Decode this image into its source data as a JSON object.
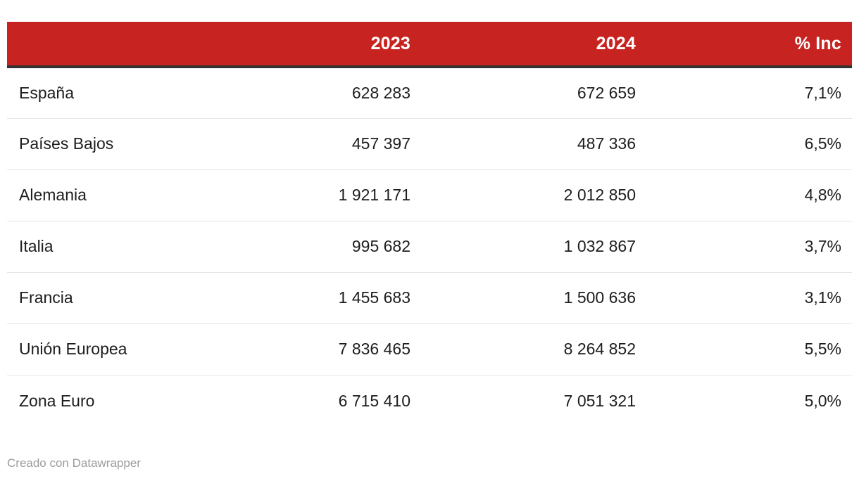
{
  "colors": {
    "header_bg": "#c72320",
    "header_text": "#ffffff",
    "header_rule": "#333333",
    "row_divider": "#e6e6e6",
    "body_text": "#1d1d1d",
    "credit_text": "#9c9c9c"
  },
  "table": {
    "headers": {
      "country": "",
      "y2023": "2023",
      "y2024": "2024",
      "inc": "% Inc"
    },
    "rows": [
      {
        "country": "España",
        "y2023": "628 283",
        "y2024": "672 659",
        "inc": "7,1%"
      },
      {
        "country": "Países Bajos",
        "y2023": "457 397",
        "y2024": "487 336",
        "inc": "6,5%"
      },
      {
        "country": "Alemania",
        "y2023": "1 921 171",
        "y2024": "2 012 850",
        "inc": "4,8%"
      },
      {
        "country": "Italia",
        "y2023": "995 682",
        "y2024": "1 032 867",
        "inc": "3,7%"
      },
      {
        "country": "Francia",
        "y2023": "1 455 683",
        "y2024": "1 500 636",
        "inc": "3,1%"
      },
      {
        "country": "Unión Europea",
        "y2023": "7 836 465",
        "y2024": "8 264 852",
        "inc": "5,5%"
      },
      {
        "country": "Zona Euro",
        "y2023": "6 715 410",
        "y2024": "7 051 321",
        "inc": "5,0%"
      }
    ]
  },
  "footer": {
    "credit": "Creado con Datawrapper"
  },
  "chart_data": {
    "type": "table",
    "columns": [
      "",
      "2023",
      "2024",
      "% Inc"
    ],
    "rows": [
      {
        "label": "España",
        "v2023": 628283,
        "v2024": 672659,
        "pct_inc": 7.1
      },
      {
        "label": "Países Bajos",
        "v2023": 457397,
        "v2024": 487336,
        "pct_inc": 6.5
      },
      {
        "label": "Alemania",
        "v2023": 1921171,
        "v2024": 2012850,
        "pct_inc": 4.8
      },
      {
        "label": "Italia",
        "v2023": 995682,
        "v2024": 1032867,
        "pct_inc": 3.7
      },
      {
        "label": "Francia",
        "v2023": 1455683,
        "v2024": 1500636,
        "pct_inc": 3.1
      },
      {
        "label": "Unión Europea",
        "v2023": 7836465,
        "v2024": 8264852,
        "pct_inc": 5.5
      },
      {
        "label": "Zona Euro",
        "v2023": 6715410,
        "v2024": 7051321,
        "pct_inc": 5.0
      }
    ],
    "layout_hints": {
      "header_style": "red-bar",
      "number_alignment": "right",
      "thousands_separator": " ",
      "decimal_separator": ","
    }
  }
}
